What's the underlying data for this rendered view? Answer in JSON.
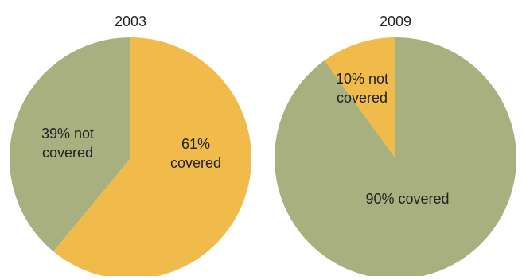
{
  "chart_data": [
    {
      "type": "pie",
      "title": "2003",
      "slices": [
        {
          "label": "61% covered",
          "lines": [
            "61%",
            "covered"
          ],
          "value": 61,
          "color": "#f0bb4a"
        },
        {
          "label": "39% not covered",
          "lines": [
            "39% not",
            "covered"
          ],
          "value": 39,
          "color": "#a8b07f"
        }
      ]
    },
    {
      "type": "pie",
      "title": "2009",
      "slices": [
        {
          "label": "90% covered",
          "lines": [
            "90% covered"
          ],
          "value": 90,
          "color": "#a8b07f"
        },
        {
          "label": "10% not covered",
          "lines": [
            "10% not",
            "covered"
          ],
          "value": 10,
          "color": "#f0bb4a"
        }
      ]
    }
  ]
}
